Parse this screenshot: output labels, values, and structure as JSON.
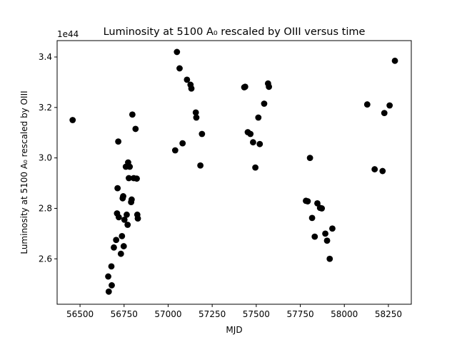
{
  "chart_data": {
    "type": "scatter",
    "title": "Luminosity at 5100 A₀ rescaled by OIII versus time",
    "xlabel": "MJD",
    "ylabel": "Luminosity at 5100 A₀ rescaled by OIII",
    "y_offset_label": "1e44",
    "xlim": [
      56370,
      58380
    ],
    "ylim": [
      2.42,
      3.465
    ],
    "x_ticks": [
      56500,
      56750,
      57000,
      57250,
      57500,
      57750,
      58000,
      58250
    ],
    "y_ticks": [
      2.6,
      2.8,
      3.0,
      3.2,
      3.4
    ],
    "y_tick_labels": [
      "2.6",
      "2.8",
      "3.0",
      "3.2",
      "3.4"
    ],
    "grid": false,
    "marker_color": "#000000",
    "series": [
      {
        "points": [
          [
            56458,
            3.15
          ],
          [
            56660,
            2.53
          ],
          [
            56663,
            2.47
          ],
          [
            56678,
            2.57
          ],
          [
            56680,
            2.495
          ],
          [
            56692,
            2.645
          ],
          [
            56705,
            2.675
          ],
          [
            56710,
            2.78
          ],
          [
            56713,
            2.88
          ],
          [
            56717,
            3.065
          ],
          [
            56720,
            2.765
          ],
          [
            56732,
            2.62
          ],
          [
            56738,
            2.69
          ],
          [
            56742,
            2.84
          ],
          [
            56745,
            2.848
          ],
          [
            56748,
            2.65
          ],
          [
            56752,
            2.755
          ],
          [
            56760,
            2.965
          ],
          [
            56765,
            2.775
          ],
          [
            56770,
            2.735
          ],
          [
            56773,
            2.982
          ],
          [
            56777,
            2.92
          ],
          [
            56782,
            2.965
          ],
          [
            56790,
            2.825
          ],
          [
            56793,
            2.835
          ],
          [
            56797,
            3.172
          ],
          [
            56805,
            2.92
          ],
          [
            56815,
            3.115
          ],
          [
            56822,
            2.918
          ],
          [
            56825,
            2.775
          ],
          [
            56828,
            2.76
          ],
          [
            57040,
            3.03
          ],
          [
            57050,
            3.42
          ],
          [
            57065,
            3.355
          ],
          [
            57082,
            3.058
          ],
          [
            57107,
            3.31
          ],
          [
            57127,
            3.29
          ],
          [
            57132,
            3.275
          ],
          [
            57157,
            3.18
          ],
          [
            57160,
            3.16
          ],
          [
            57183,
            2.97
          ],
          [
            57192,
            3.095
          ],
          [
            57432,
            3.28
          ],
          [
            57437,
            3.282
          ],
          [
            57452,
            3.102
          ],
          [
            57467,
            3.095
          ],
          [
            57482,
            3.062
          ],
          [
            57495,
            2.962
          ],
          [
            57512,
            3.16
          ],
          [
            57520,
            3.055
          ],
          [
            57545,
            3.215
          ],
          [
            57567,
            3.295
          ],
          [
            57572,
            3.282
          ],
          [
            57782,
            2.83
          ],
          [
            57792,
            2.828
          ],
          [
            57805,
            3.0
          ],
          [
            57817,
            2.762
          ],
          [
            57832,
            2.688
          ],
          [
            57847,
            2.82
          ],
          [
            57862,
            2.802
          ],
          [
            57872,
            2.8
          ],
          [
            57892,
            2.7
          ],
          [
            57902,
            2.672
          ],
          [
            57917,
            2.6
          ],
          [
            57932,
            2.72
          ],
          [
            58130,
            3.212
          ],
          [
            58172,
            2.955
          ],
          [
            58217,
            2.948
          ],
          [
            58227,
            3.178
          ],
          [
            58257,
            3.208
          ],
          [
            58287,
            3.385
          ]
        ]
      }
    ]
  }
}
